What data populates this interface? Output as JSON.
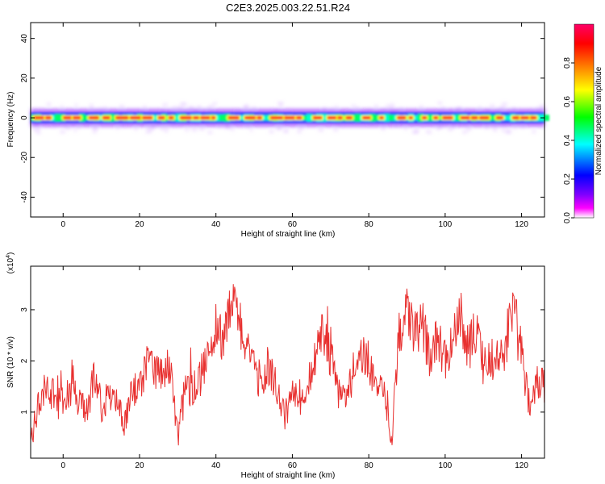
{
  "title": "C2E3.2025.003.22.51.R24",
  "chart_data": [
    {
      "type": "heatmap",
      "xlabel": "Height of straight line (km)",
      "ylabel": "Frequency (Hz)",
      "xlim": [
        -8.5,
        126
      ],
      "ylim": [
        -50,
        48
      ],
      "xticks": [
        0,
        20,
        40,
        60,
        80,
        100,
        120
      ],
      "yticks": [
        -40,
        -20,
        0,
        20,
        40
      ],
      "band": {
        "center_hz": 0,
        "core_halfwidth_hz": 1.2,
        "outer_halfwidth_hz": 4.5,
        "note": "spectral energy concentrated near 0 Hz along whole height range"
      },
      "colorbar": {
        "label": "Normalized spectral amplitude",
        "range": [
          0.0,
          1.0
        ],
        "ticks": [
          0.0,
          0.2,
          0.4,
          0.6,
          0.8
        ],
        "colors": [
          "#ffffff",
          "#7f00ff",
          "#0000ff",
          "#00ffff",
          "#00ff00",
          "#ffff00",
          "#ff7f00",
          "#ff0000",
          "#ff00ff"
        ]
      }
    },
    {
      "type": "line",
      "xlabel": "Height of straight line (km)",
      "ylabel": "SNR (10 * v/v)",
      "multiplier": "(x10",
      "multiplier_exp": "4",
      "multiplier_close": ")",
      "xlim": [
        -8.5,
        126
      ],
      "ylim": [
        0.1,
        3.85
      ],
      "xticks": [
        0,
        20,
        40,
        60,
        80,
        100,
        120
      ],
      "yticks": [
        1,
        2,
        3
      ],
      "color": "#e8302f",
      "x": [
        -8,
        -6,
        -4,
        -2,
        0,
        2,
        4,
        6,
        8,
        10,
        12,
        14,
        16,
        18,
        20,
        22,
        24,
        26,
        28,
        30,
        32,
        34,
        36,
        38,
        40,
        42,
        44,
        46,
        48,
        50,
        52,
        54,
        56,
        58,
        60,
        62,
        64,
        66,
        68,
        70,
        72,
        74,
        76,
        78,
        80,
        82,
        84,
        86,
        88,
        90,
        92,
        94,
        96,
        98,
        100,
        102,
        104,
        106,
        108,
        110,
        112,
        114,
        116,
        118,
        120,
        122,
        124,
        126
      ],
      "y": [
        0.6,
        1.3,
        1.6,
        1.1,
        1.3,
        1.4,
        1.2,
        1.0,
        1.6,
        1.1,
        1.3,
        1.2,
        0.7,
        1.4,
        1.5,
        2.0,
        1.7,
        1.8,
        1.9,
        0.5,
        1.5,
        1.4,
        1.7,
        2.2,
        2.7,
        2.4,
        3.1,
        2.9,
        2.2,
        1.8,
        1.6,
        1.9,
        1.4,
        0.9,
        1.4,
        1.1,
        1.6,
        2.0,
        2.6,
        2.1,
        1.4,
        1.3,
        1.7,
        2.2,
        2.0,
        1.5,
        1.3,
        0.5,
        2.6,
        3.0,
        2.5,
        2.7,
        2.1,
        2.4,
        2.0,
        2.4,
        3.0,
        2.2,
        2.6,
        1.9,
        2.0,
        2.1,
        2.2,
        3.2,
        2.1,
        1.2,
        1.6,
        1.5
      ]
    }
  ]
}
